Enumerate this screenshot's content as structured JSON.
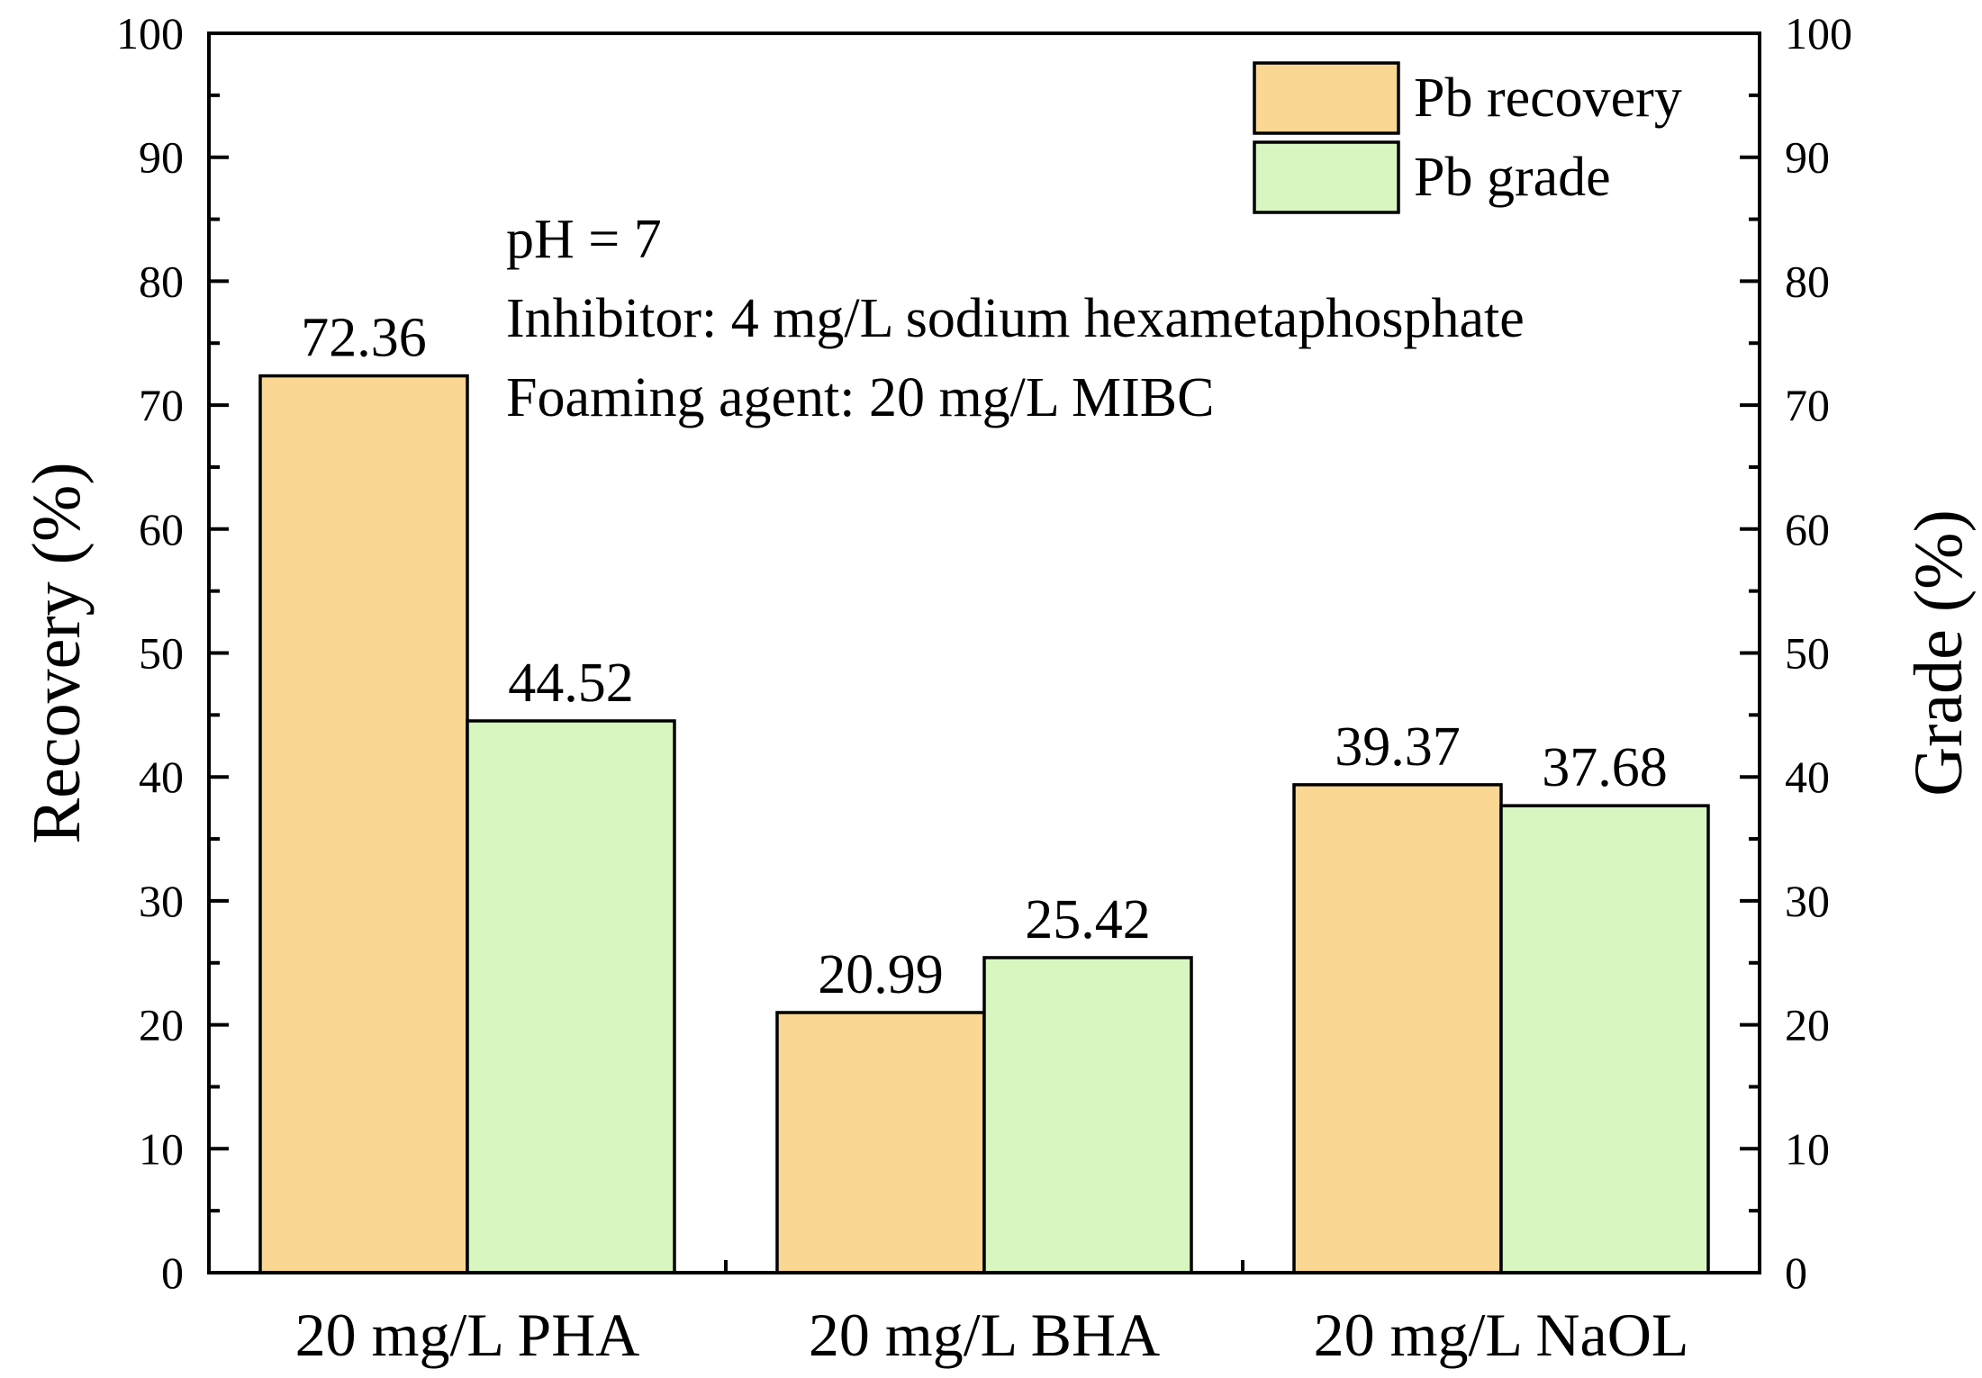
{
  "chart_data": {
    "type": "bar",
    "title": "",
    "categories": [
      "20 mg/L PHA",
      "20 mg/L BHA",
      "20 mg/L NaOL"
    ],
    "series": [
      {
        "name": "Pb recovery",
        "axis": "left",
        "color": "#FAD793",
        "values": [
          72.36,
          20.99,
          39.37
        ]
      },
      {
        "name": "Pb grade",
        "axis": "right",
        "color": "#D7F6C0",
        "values": [
          44.52,
          25.42,
          37.68
        ]
      }
    ],
    "xlabel": "",
    "ylabel": "Recovery (%)",
    "ylabel_right": "Grade (%)",
    "ylim": [
      0,
      100
    ],
    "ylim_right": [
      0,
      100
    ],
    "yticks": [
      0,
      10,
      20,
      30,
      40,
      50,
      60,
      70,
      80,
      90,
      100
    ],
    "data_labels": [
      [
        "72.36",
        "20.99",
        "39.37"
      ],
      [
        "44.52",
        "25.42",
        "37.68"
      ]
    ],
    "annotations": [
      "pH = 7",
      "Inhibitor: 4 mg/L sodium hexametaphosphate",
      "Foaming agent: 20 mg/L MIBC"
    ],
    "legend_position": "top-right",
    "grid": false
  }
}
